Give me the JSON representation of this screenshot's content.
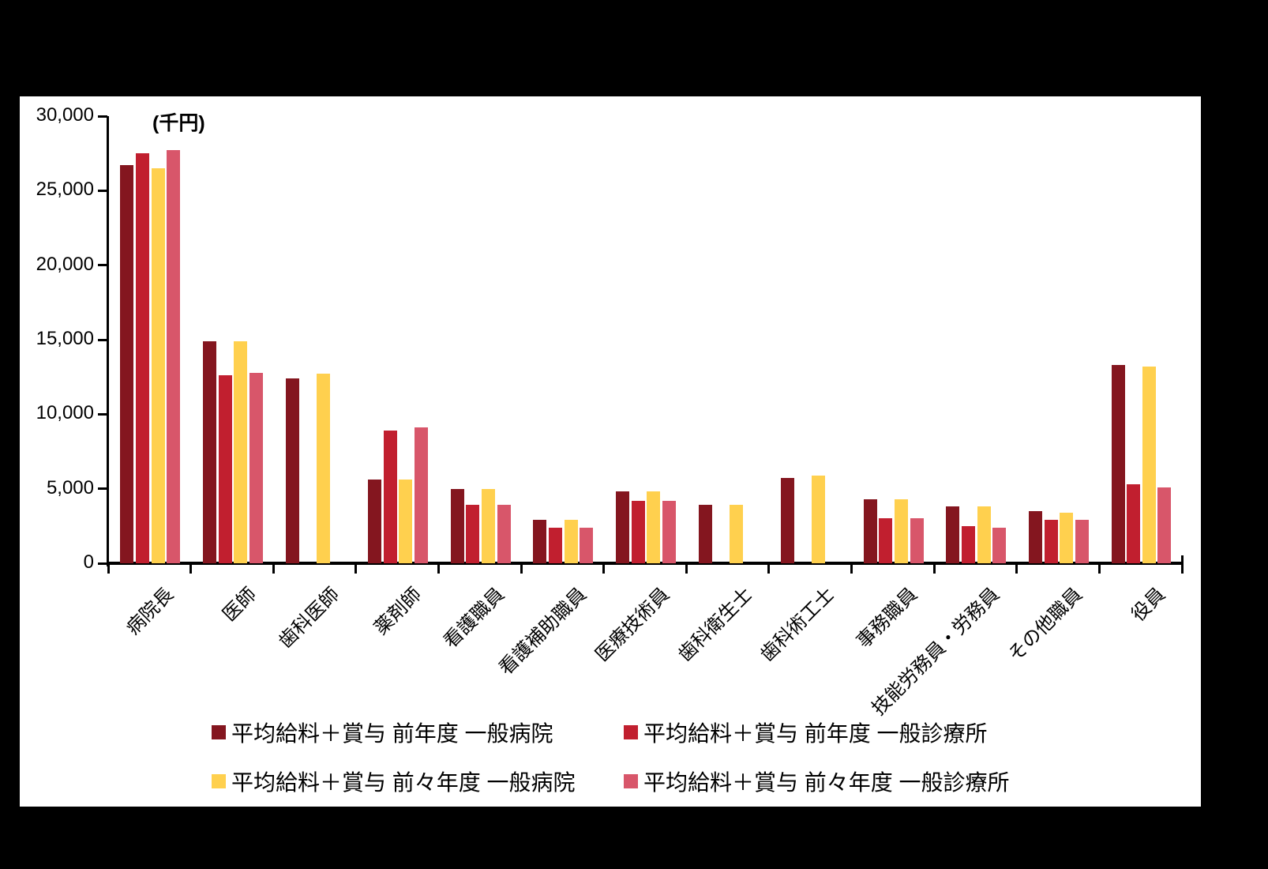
{
  "chart_data": {
    "type": "bar",
    "title": "",
    "unit_label": "(千円)",
    "xlabel": "",
    "ylabel": "",
    "ylim": [
      0,
      30000
    ],
    "ytick_step": 5000,
    "yticklabels": [
      "0",
      "5,000",
      "10,000",
      "15,000",
      "20,000",
      "25,000",
      "30,000"
    ],
    "grid": false,
    "legend_position": "bottom",
    "categories": [
      "病院長",
      "医師",
      "歯科医師",
      "薬剤師",
      "看護職員",
      "看護補助職員",
      "医療技術員",
      "歯科衛生士",
      "歯科術工士",
      "事務職員",
      "技能労務員・労務員",
      "その他職員",
      "役員"
    ],
    "series": [
      {
        "name": "平均給料＋賞与 前年度 一般病院",
        "color": "#84161F",
        "values": [
          26700,
          14900,
          12400,
          5600,
          5000,
          2900,
          4800,
          3900,
          5700,
          4300,
          3800,
          3500,
          13300
        ]
      },
      {
        "name": "平均給料＋賞与 前年度 一般診療所",
        "color": "#C11F2F",
        "values": [
          27500,
          12600,
          null,
          8900,
          3900,
          2400,
          4200,
          null,
          null,
          3000,
          2500,
          2900,
          5300
        ]
      },
      {
        "name": "平均給料＋賞与 前々年度 一般病院",
        "color": "#FFD04E",
        "values": [
          26500,
          14900,
          12700,
          5600,
          5000,
          2900,
          4800,
          3900,
          5900,
          4300,
          3800,
          3400,
          13200
        ]
      },
      {
        "name": "平均給料＋賞与 前々年度 一般診療所",
        "color": "#D8566A",
        "values": [
          27700,
          12800,
          null,
          9100,
          3900,
          2400,
          4200,
          null,
          null,
          3000,
          2400,
          2900,
          5100
        ]
      }
    ]
  }
}
